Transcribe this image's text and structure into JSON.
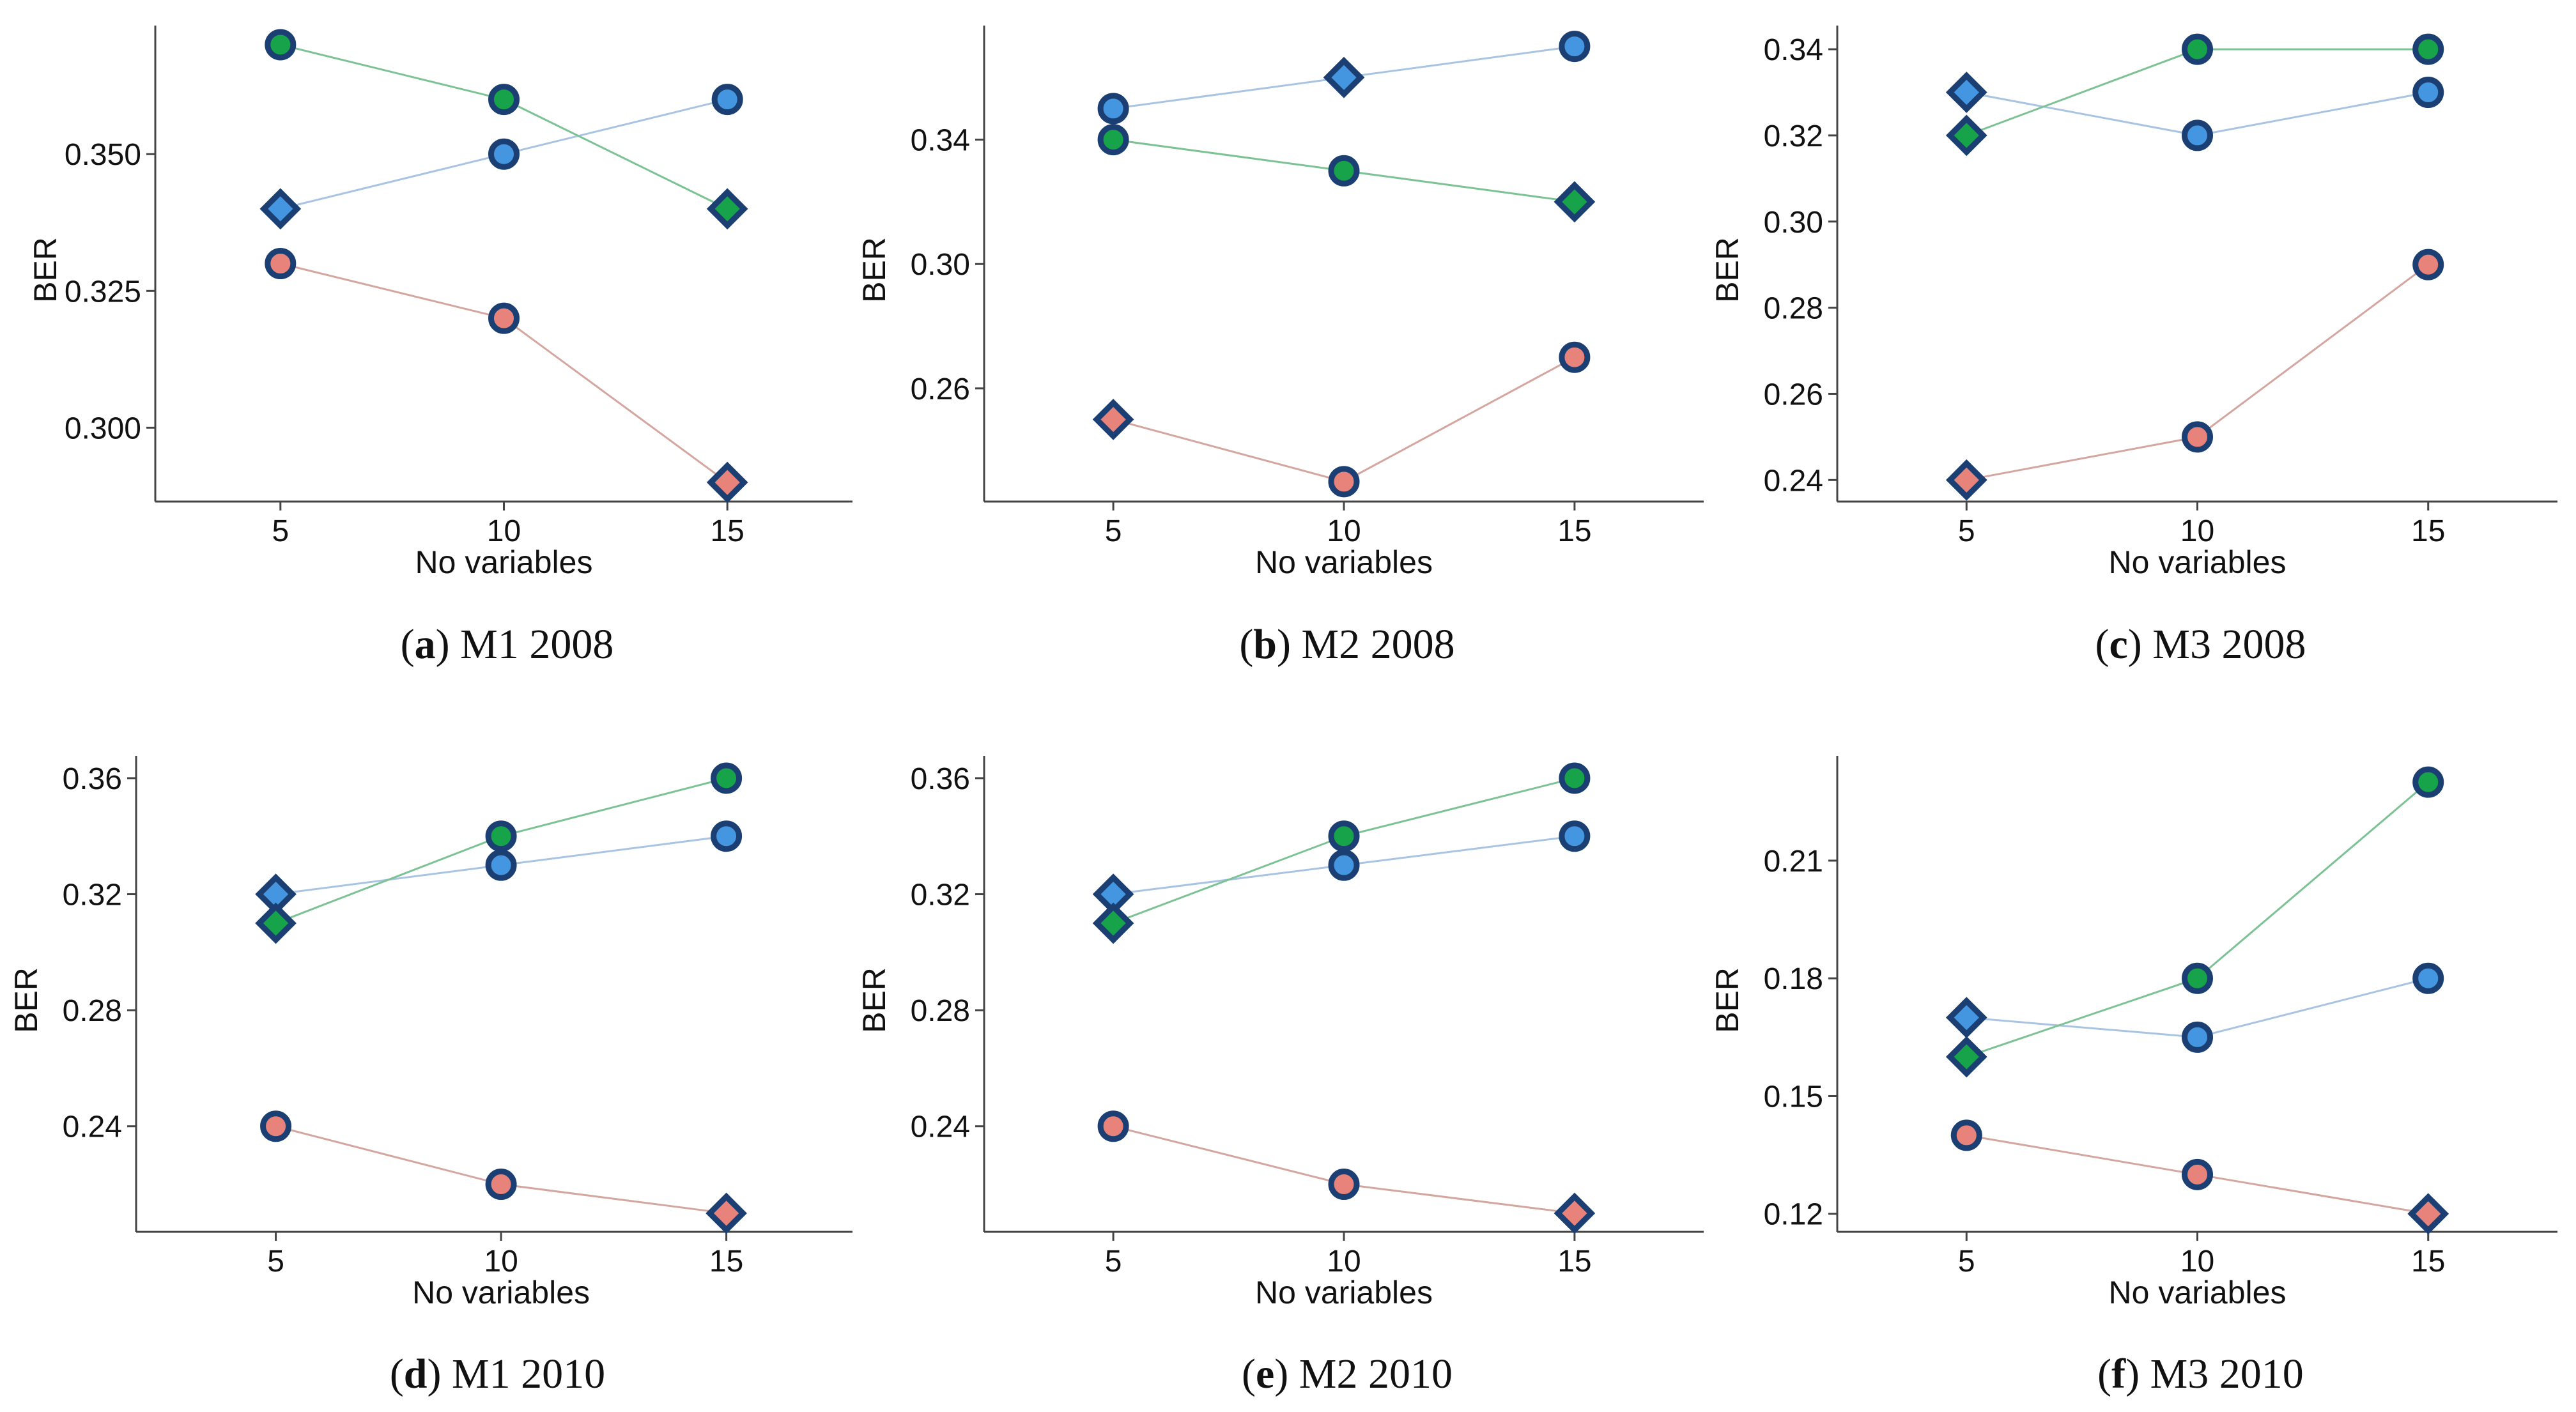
{
  "series_styles": [
    {
      "key": "red",
      "line_color": "#d4a6a0",
      "fill_color": "#e8837b"
    },
    {
      "key": "blue",
      "line_color": "#a9c4e2",
      "fill_color": "#4596e0"
    },
    {
      "key": "green",
      "line_color": "#7cc295",
      "fill_color": "#17a34a"
    }
  ],
  "marker_edge_color": "#1b3f73",
  "chart_data": [
    {
      "type": "line",
      "caption_letter": "a",
      "caption_text": "M1 2008",
      "xlabel": "No variables",
      "ylabel": "BER",
      "x": [
        5,
        10,
        15
      ],
      "xlim": [
        2.2,
        17.8
      ],
      "ylim": [
        0.2865,
        0.3735
      ],
      "yticks": [
        0.3,
        0.325,
        0.35
      ],
      "ytick_labels": [
        "0.300",
        "0.325",
        "0.350"
      ],
      "series": [
        {
          "name": "red",
          "values": [
            0.33,
            0.32,
            0.29
          ],
          "markers": [
            "circle",
            "circle",
            "diamond"
          ]
        },
        {
          "name": "blue",
          "values": [
            0.34,
            0.35,
            0.36
          ],
          "markers": [
            "diamond",
            "circle",
            "circle"
          ]
        },
        {
          "name": "green",
          "values": [
            0.37,
            0.36,
            0.34
          ],
          "markers": [
            "circle",
            "circle",
            "diamond"
          ]
        }
      ]
    },
    {
      "type": "line",
      "caption_letter": "b",
      "caption_text": "M2 2008",
      "xlabel": "No variables",
      "ylabel": "BER",
      "x": [
        5,
        10,
        15
      ],
      "xlim": [
        2.2,
        17.8
      ],
      "ylim": [
        0.2236,
        0.3767
      ],
      "yticks": [
        0.26,
        0.3,
        0.34
      ],
      "ytick_labels": [
        "0.26",
        "0.30",
        "0.34"
      ],
      "series": [
        {
          "name": "red",
          "values": [
            0.25,
            0.23,
            0.27
          ],
          "markers": [
            "diamond",
            "circle",
            "circle"
          ]
        },
        {
          "name": "blue",
          "values": [
            0.35,
            0.36,
            0.37
          ],
          "markers": [
            "circle",
            "diamond",
            "circle"
          ]
        },
        {
          "name": "green",
          "values": [
            0.34,
            0.33,
            0.32
          ],
          "markers": [
            "circle",
            "circle",
            "diamond"
          ]
        }
      ]
    },
    {
      "type": "line",
      "caption_letter": "c",
      "caption_text": "M3 2008",
      "xlabel": "No variables",
      "ylabel": "BER",
      "x": [
        5,
        10,
        15
      ],
      "xlim": [
        2.2,
        17.8
      ],
      "ylim": [
        0.235,
        0.3455
      ],
      "yticks": [
        0.24,
        0.26,
        0.28,
        0.3,
        0.32,
        0.34
      ],
      "ytick_labels": [
        "0.24",
        "0.26",
        "0.28",
        "0.30",
        "0.32",
        "0.34"
      ],
      "series": [
        {
          "name": "red",
          "values": [
            0.24,
            0.25,
            0.29
          ],
          "markers": [
            "diamond",
            "circle",
            "circle"
          ]
        },
        {
          "name": "blue",
          "values": [
            0.33,
            0.32,
            0.33
          ],
          "markers": [
            "diamond",
            "circle",
            "circle"
          ]
        },
        {
          "name": "green",
          "values": [
            0.32,
            0.34,
            0.34
          ],
          "markers": [
            "diamond",
            "circle",
            "circle"
          ]
        }
      ]
    },
    {
      "type": "line",
      "caption_letter": "d",
      "caption_text": "M1 2010",
      "xlabel": "No variables",
      "ylabel": "BER",
      "x": [
        5,
        10,
        15
      ],
      "xlim": [
        1.9,
        17.8
      ],
      "ylim": [
        0.2036,
        0.3677
      ],
      "yticks": [
        0.24,
        0.28,
        0.32,
        0.36
      ],
      "ytick_labels": [
        "0.24",
        "0.28",
        "0.32",
        "0.36"
      ],
      "series": [
        {
          "name": "red",
          "values": [
            0.24,
            0.22,
            0.21
          ],
          "markers": [
            "circle",
            "circle",
            "diamond"
          ]
        },
        {
          "name": "blue",
          "values": [
            0.32,
            0.33,
            0.34
          ],
          "markers": [
            "diamond",
            "circle",
            "circle"
          ]
        },
        {
          "name": "green",
          "values": [
            0.31,
            0.34,
            0.36
          ],
          "markers": [
            "diamond",
            "circle",
            "circle"
          ]
        }
      ]
    },
    {
      "type": "line",
      "caption_letter": "e",
      "caption_text": "M2 2010",
      "xlabel": "No variables",
      "ylabel": "BER",
      "x": [
        5,
        10,
        15
      ],
      "xlim": [
        2.2,
        17.8
      ],
      "ylim": [
        0.2036,
        0.3677
      ],
      "yticks": [
        0.24,
        0.28,
        0.32,
        0.36
      ],
      "ytick_labels": [
        "0.24",
        "0.28",
        "0.32",
        "0.36"
      ],
      "series": [
        {
          "name": "red",
          "values": [
            0.24,
            0.22,
            0.21
          ],
          "markers": [
            "circle",
            "circle",
            "diamond"
          ]
        },
        {
          "name": "blue",
          "values": [
            0.32,
            0.33,
            0.34
          ],
          "markers": [
            "diamond",
            "circle",
            "circle"
          ]
        },
        {
          "name": "green",
          "values": [
            0.31,
            0.34,
            0.36
          ],
          "markers": [
            "diamond",
            "circle",
            "circle"
          ]
        }
      ]
    },
    {
      "type": "line",
      "caption_letter": "f",
      "caption_text": "M3 2010",
      "xlabel": "No variables",
      "ylabel": "BER",
      "x": [
        5,
        10,
        15
      ],
      "xlim": [
        2.2,
        17.8
      ],
      "ylim": [
        0.1154,
        0.2367
      ],
      "yticks": [
        0.12,
        0.15,
        0.18,
        0.21
      ],
      "ytick_labels": [
        "0.12",
        "0.15",
        "0.18",
        "0.21"
      ],
      "series": [
        {
          "name": "red",
          "values": [
            0.14,
            0.13,
            0.12
          ],
          "markers": [
            "circle",
            "circle",
            "diamond"
          ]
        },
        {
          "name": "blue",
          "values": [
            0.17,
            0.165,
            0.18
          ],
          "markers": [
            "diamond",
            "circle",
            "circle"
          ]
        },
        {
          "name": "green",
          "values": [
            0.16,
            0.18,
            0.23
          ],
          "markers": [
            "diamond",
            "circle",
            "circle"
          ]
        }
      ]
    }
  ]
}
